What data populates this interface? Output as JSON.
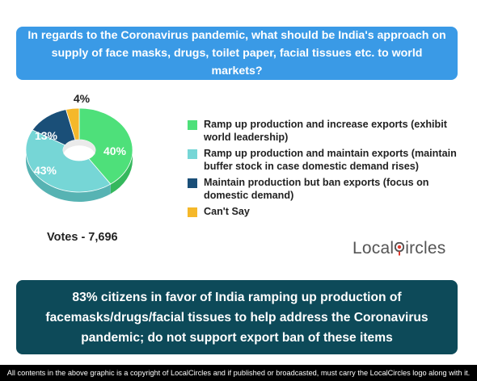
{
  "question": "In regards to the Coronavirus pandemic, what should be India's approach on supply of face masks, drugs, toilet paper, facial tissues etc. to world markets?",
  "votes_label": "Votes - 7,696",
  "brand": {
    "part1": "Local",
    "part2": "ircles"
  },
  "summary": "83% citizens in favor of India ramping up production of facemasks/drugs/facial tissues to help address the Coronavirus pandemic; do not support export ban of these items",
  "footer": "All contents in the above graphic is a copyright of LocalCircles and if published or broadcasted, must carry the LocalCircles logo along with it.",
  "colors": {
    "question_bg": "#3a9ae6",
    "summary_bg": "#0d4a59"
  },
  "chart_data": {
    "type": "pie",
    "style": "3d-donut",
    "slices": [
      {
        "label": "Ramp up production and increase exports (exhibit world leadership)",
        "value": 40,
        "display": "40%",
        "color": "#4ee07a",
        "side": "#35b85d"
      },
      {
        "label": "Ramp up production and maintain exports (maintain buffer stock in case domestic demand rises)",
        "value": 43,
        "display": "43%",
        "color": "#76d6d6",
        "side": "#57b3b3"
      },
      {
        "label": "Maintain production but ban exports (focus on domestic demand)",
        "value": 13,
        "display": "13%",
        "color": "#1a4f78",
        "side": "#123a59"
      },
      {
        "label": "Can't Say",
        "value": 4,
        "display": "4%",
        "color": "#f5b82a",
        "side": "#d09a18"
      }
    ]
  }
}
